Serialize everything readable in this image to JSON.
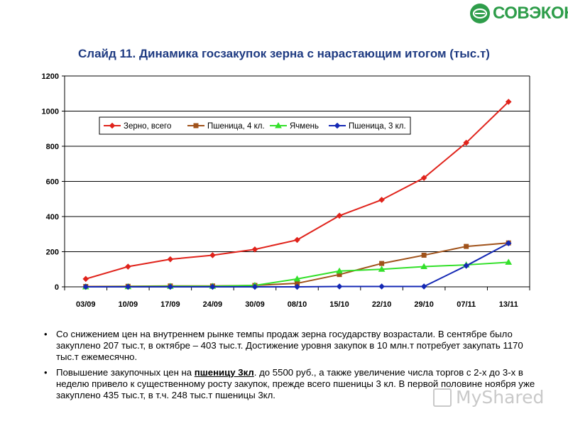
{
  "logo": {
    "text": "СОВЭКОН"
  },
  "title": "Слайд 11. Динамика госзакупок зерна с нарастающим итогом (тыс.т)",
  "chart_data": {
    "type": "line",
    "categories": [
      "03/09",
      "10/09",
      "17/09",
      "24/09",
      "30/09",
      "08/10",
      "15/10",
      "22/10",
      "29/10",
      "07/11",
      "13/11"
    ],
    "ylim": [
      0,
      1200
    ],
    "yticks": [
      "0",
      "200",
      "400",
      "600",
      "800",
      "1000",
      "1200"
    ],
    "grid": true,
    "legend_position": "top-left inside",
    "series": [
      {
        "name": "Зерно, всего",
        "color": "#e0231b",
        "marker": "diamond",
        "values": [
          45,
          115,
          157,
          180,
          213,
          267,
          405,
          495,
          620,
          820,
          1053
        ]
      },
      {
        "name": "Пшеница, 4 кл.",
        "color": "#a0521a",
        "marker": "square",
        "values": [
          2,
          3,
          5,
          5,
          8,
          20,
          70,
          133,
          180,
          230,
          250
        ]
      },
      {
        "name": "Ячмень",
        "color": "#33e02a",
        "marker": "triangle",
        "values": [
          0,
          1,
          3,
          3,
          8,
          45,
          90,
          100,
          115,
          125,
          140
        ]
      },
      {
        "name": "Пшеница, 3 кл.",
        "color": "#1428b4",
        "marker": "diamond",
        "values": [
          0,
          0,
          0,
          0,
          0,
          0,
          2,
          2,
          2,
          120,
          248
        ]
      }
    ]
  },
  "bullets": [
    {
      "text": "Со снижением цен на внутреннем рынке темпы продаж зерна государству возрастали. В сентябре было закуплено 207 тыс.т, в октябре – 403 тыс.т. Достижение уровня закупок в 10 млн.т потребует закупать 1170 тыс.т ежемесячно."
    },
    {
      "before": "Повышение закупочных цен на ",
      "emph": "пшеницу 3кл",
      "after": ". до 5500 руб., а также увеличение числа торгов с 2-х до 3-х в неделю привело к существенному росту закупок, прежде всего пшеницы 3 кл. В первой половине ноября уже закуплено 435 тыс.т, в т.ч. 248 тыс.т пшеницы 3кл."
    }
  ],
  "watermark": "MyShared",
  "icons": {
    "logo": "sovecon-logo-icon",
    "watermark": "presentation-icon"
  }
}
